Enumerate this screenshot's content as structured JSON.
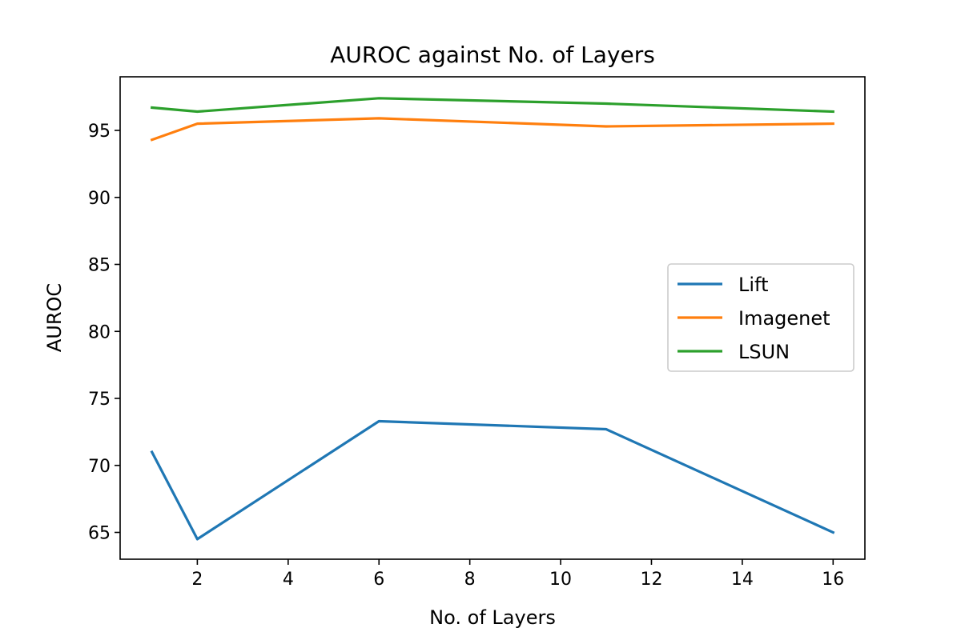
{
  "chart_data": {
    "type": "line",
    "title": "AUROC against No. of Layers",
    "xlabel": "No. of Layers",
    "ylabel": "AUROC",
    "x": [
      1,
      2,
      6,
      11,
      16
    ],
    "xlim": [
      0.3,
      16.7
    ],
    "ylim": [
      63,
      99
    ],
    "xticks": [
      2,
      4,
      6,
      8,
      10,
      12,
      14,
      16
    ],
    "yticks": [
      65,
      70,
      75,
      80,
      85,
      90,
      95
    ],
    "grid": false,
    "legend_position": "center-right",
    "series": [
      {
        "name": "Lift",
        "color": "#1f77b4",
        "values": [
          71.0,
          64.5,
          73.3,
          72.7,
          65.0
        ]
      },
      {
        "name": "Imagenet",
        "color": "#ff7f0e",
        "values": [
          94.3,
          95.5,
          95.9,
          95.3,
          95.5
        ]
      },
      {
        "name": "LSUN",
        "color": "#2ca02c",
        "values": [
          96.7,
          96.4,
          97.4,
          97.0,
          96.4
        ]
      }
    ]
  }
}
